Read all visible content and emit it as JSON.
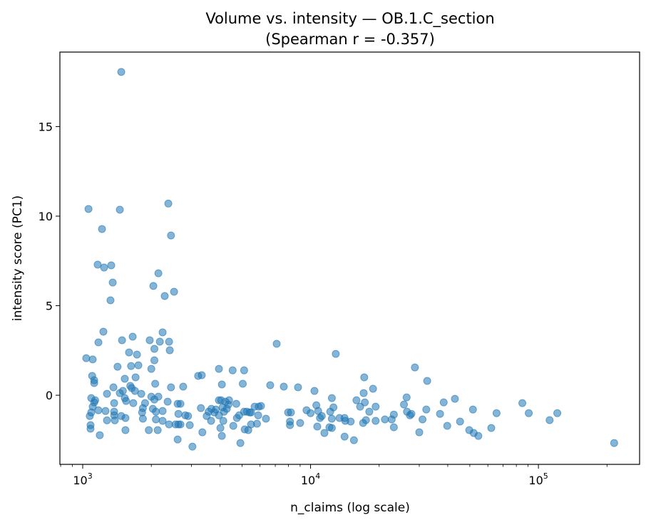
{
  "chart_data": {
    "type": "scatter",
    "title": "Volume vs. intensity — OB.1.C_section",
    "subtitle": "(Spearman r = -0.357)",
    "xlabel": "n_claims (log scale)",
    "ylabel": "intensity score (PC1)",
    "x_scale": "log",
    "xlim": [
      794,
      278000
    ],
    "ylim": [
      -3.86,
      19.16
    ],
    "x_ticks": [
      {
        "value": 1000,
        "base": "10",
        "exp": "3"
      },
      {
        "value": 10000,
        "base": "10",
        "exp": "4"
      },
      {
        "value": 100000,
        "base": "10",
        "exp": "5"
      }
    ],
    "y_ticks": [
      0,
      5,
      10,
      15
    ],
    "grid": false,
    "legend": "none",
    "color": "#1f77b4",
    "points": [
      [
        1476,
        18.05
      ],
      [
        1060,
        10.4
      ],
      [
        1455,
        10.36
      ],
      [
        1215,
        9.28
      ],
      [
        2375,
        10.7
      ],
      [
        2440,
        8.92
      ],
      [
        1163,
        7.29
      ],
      [
        1241,
        7.13
      ],
      [
        1334,
        7.25
      ],
      [
        1354,
        6.29
      ],
      [
        1324,
        5.3
      ],
      [
        2148,
        6.81
      ],
      [
        2042,
        6.1
      ],
      [
        2290,
        5.54
      ],
      [
        2517,
        5.78
      ],
      [
        1232,
        3.55
      ],
      [
        1172,
        2.95
      ],
      [
        1036,
        2.07
      ],
      [
        1106,
        2.0
      ],
      [
        1488,
        3.07
      ],
      [
        1657,
        3.27
      ],
      [
        1597,
        2.39
      ],
      [
        1730,
        2.27
      ],
      [
        1422,
        1.59
      ],
      [
        1630,
        1.63
      ],
      [
        1755,
        1.67
      ],
      [
        1968,
        3.07
      ],
      [
        2242,
        3.51
      ],
      [
        2180,
        2.99
      ],
      [
        2393,
        2.99
      ],
      [
        2410,
        2.51
      ],
      [
        2063,
        2.59
      ],
      [
        2063,
        1.95
      ],
      [
        2000,
        1.47
      ],
      [
        1100,
        1.08
      ],
      [
        1123,
        0.84
      ],
      [
        1123,
        0.68
      ],
      [
        1530,
        0.92
      ],
      [
        1706,
        1.0
      ],
      [
        2080,
        0.64
      ],
      [
        1617,
        0.52
      ],
      [
        1640,
        0.4
      ],
      [
        2760,
        0.48
      ],
      [
        2440,
        0.44
      ],
      [
        1695,
        0.24
      ],
      [
        1500,
        0.24
      ],
      [
        1364,
        0.44
      ],
      [
        1278,
        0.08
      ],
      [
        1455,
        0.12
      ],
      [
        1807,
        0.08
      ],
      [
        1090,
        -0.16
      ],
      [
        1134,
        -0.28
      ],
      [
        1123,
        -0.4
      ],
      [
        1374,
        -0.44
      ],
      [
        1530,
        -0.16
      ],
      [
        1550,
        -0.32
      ],
      [
        1667,
        -0.44
      ],
      [
        1878,
        -0.44
      ],
      [
        2000,
        -0.08
      ],
      [
        2063,
        -0.24
      ],
      [
        2148,
        -0.08
      ],
      [
        2359,
        -0.36
      ],
      [
        2610,
        -0.48
      ],
      [
        2685,
        -0.48
      ],
      [
        1106,
        -0.64
      ],
      [
        1090,
        -0.96
      ],
      [
        1074,
        -1.16
      ],
      [
        1172,
        -0.84
      ],
      [
        1259,
        -0.88
      ],
      [
        1374,
        -0.92
      ],
      [
        1374,
        -1.12
      ],
      [
        1476,
        -1.16
      ],
      [
        1540,
        -1.27
      ],
      [
        1278,
        -1.4
      ],
      [
        1383,
        -1.4
      ],
      [
        1837,
        -0.72
      ],
      [
        1822,
        -0.96
      ],
      [
        1837,
        -1.31
      ],
      [
        2031,
        -0.76
      ],
      [
        2095,
        -0.92
      ],
      [
        2242,
        -0.88
      ],
      [
        2095,
        -1.35
      ],
      [
        2242,
        -1.43
      ],
      [
        2393,
        -1.63
      ],
      [
        2556,
        -1.63
      ],
      [
        2630,
        -1.63
      ],
      [
        2685,
        -1.63
      ],
      [
        2820,
        -1.12
      ],
      [
        2900,
        -1.16
      ],
      [
        2950,
        -1.67
      ],
      [
        2630,
        -1.04
      ],
      [
        1082,
        -1.67
      ],
      [
        1082,
        -1.87
      ],
      [
        1188,
        -2.23
      ],
      [
        1540,
        -1.95
      ],
      [
        1950,
        -1.95
      ],
      [
        2133,
        -1.95
      ],
      [
        2610,
        -2.47
      ],
      [
        3030,
        -2.87
      ],
      [
        3210,
        1.08
      ],
      [
        3330,
        1.12
      ],
      [
        3300,
        -0.72
      ],
      [
        3500,
        -1.16
      ],
      [
        3350,
        -2.07
      ],
      [
        3570,
        -0.92
      ],
      [
        3670,
        -0.76
      ],
      [
        3780,
        -0.96
      ],
      [
        3960,
        -0.28
      ],
      [
        4050,
        -0.28
      ],
      [
        3840,
        -0.8
      ],
      [
        3960,
        -1.12
      ],
      [
        3660,
        -1.43
      ],
      [
        4110,
        -0.68
      ],
      [
        4170,
        -0.92
      ],
      [
        4230,
        -0.36
      ],
      [
        4360,
        -0.52
      ],
      [
        4390,
        -0.28
      ],
      [
        4290,
        -0.76
      ],
      [
        3960,
        1.47
      ],
      [
        4080,
        0.6
      ],
      [
        4550,
        1.39
      ],
      [
        5110,
        1.39
      ],
      [
        5040,
        0.64
      ],
      [
        4020,
        -1.83
      ],
      [
        4080,
        -2.27
      ],
      [
        4140,
        -1.43
      ],
      [
        4580,
        -1.71
      ],
      [
        4750,
        -1.27
      ],
      [
        4860,
        -1.12
      ],
      [
        4720,
        -0.48
      ],
      [
        4920,
        -2.67
      ],
      [
        5110,
        -0.92
      ],
      [
        5250,
        -0.92
      ],
      [
        5400,
        -0.96
      ],
      [
        5480,
        -0.96
      ],
      [
        5140,
        -1.91
      ],
      [
        5330,
        -1.95
      ],
      [
        5480,
        -1.63
      ],
      [
        5680,
        -0.64
      ],
      [
        5890,
        -1.12
      ],
      [
        5820,
        -1.59
      ],
      [
        5920,
        -0.64
      ],
      [
        6060,
        -0.6
      ],
      [
        6370,
        -1.31
      ],
      [
        6650,
        0.56
      ],
      [
        7100,
        2.87
      ],
      [
        7630,
        0.48
      ],
      [
        7970,
        -0.96
      ],
      [
        8200,
        -0.96
      ],
      [
        8120,
        -1.47
      ],
      [
        8120,
        -1.67
      ],
      [
        8810,
        0.44
      ],
      [
        9000,
        -1.55
      ],
      [
        9600,
        -0.84
      ],
      [
        10000,
        -1.0
      ],
      [
        10400,
        0.24
      ],
      [
        10600,
        -0.56
      ],
      [
        10800,
        -0.88
      ],
      [
        11000,
        -1.27
      ],
      [
        10700,
        -1.75
      ],
      [
        11200,
        -1.16
      ],
      [
        11500,
        -2.11
      ],
      [
        12100,
        -1.79
      ],
      [
        12400,
        -1.83
      ],
      [
        12200,
        -0.92
      ],
      [
        12400,
        -0.16
      ],
      [
        12600,
        -0.68
      ],
      [
        12400,
        -1.31
      ],
      [
        12900,
        2.31
      ],
      [
        13400,
        -1.27
      ],
      [
        14100,
        -1.27
      ],
      [
        14100,
        -2.31
      ],
      [
        14200,
        -1.43
      ],
      [
        15000,
        -1.47
      ],
      [
        15500,
        -2.51
      ],
      [
        15900,
        -0.28
      ],
      [
        16500,
        -0.64
      ],
      [
        17000,
        -1.55
      ],
      [
        17100,
        0.12
      ],
      [
        17200,
        1.0
      ],
      [
        17300,
        -0.4
      ],
      [
        17500,
        -1.39
      ],
      [
        18100,
        -0.92
      ],
      [
        18800,
        0.36
      ],
      [
        19300,
        -0.64
      ],
      [
        19300,
        -1.43
      ],
      [
        21200,
        -1.35
      ],
      [
        22700,
        -1.35
      ],
      [
        23200,
        -1.08
      ],
      [
        23200,
        -1.79
      ],
      [
        25700,
        -0.52
      ],
      [
        26400,
        -0.12
      ],
      [
        26500,
        -0.92
      ],
      [
        27300,
        -1.12
      ],
      [
        27700,
        -1.04
      ],
      [
        28700,
        1.55
      ],
      [
        30000,
        -2.07
      ],
      [
        31000,
        -1.35
      ],
      [
        32500,
        0.8
      ],
      [
        32200,
        -0.8
      ],
      [
        37000,
        -1.04
      ],
      [
        38400,
        -0.4
      ],
      [
        39800,
        -1.71
      ],
      [
        43000,
        -0.2
      ],
      [
        45300,
        -1.47
      ],
      [
        49700,
        -1.95
      ],
      [
        51600,
        -0.8
      ],
      [
        52000,
        -2.11
      ],
      [
        54500,
        -2.27
      ],
      [
        62100,
        -1.83
      ],
      [
        65500,
        -1.0
      ],
      [
        85000,
        -0.44
      ],
      [
        90700,
        -1.0
      ],
      [
        112000,
        -1.39
      ],
      [
        121000,
        -1.0
      ],
      [
        215000,
        -2.67
      ]
    ]
  }
}
